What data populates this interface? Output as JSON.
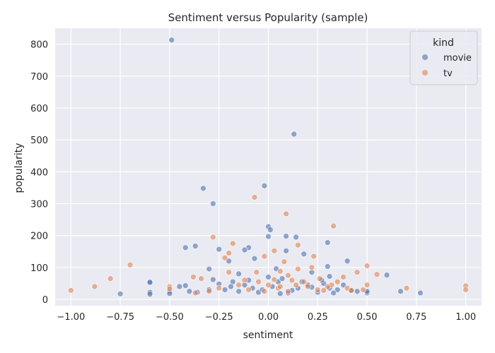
{
  "chart_data": {
    "type": "scatter",
    "title": "Sentiment versus Popularity (sample)",
    "xlabel": "sentiment",
    "ylabel": "popularity",
    "xlim": [
      -1.08,
      1.08
    ],
    "ylim": [
      -20,
      850
    ],
    "xticks": [
      -1.0,
      -0.75,
      -0.5,
      -0.25,
      0.0,
      0.25,
      0.5,
      0.75,
      1.0
    ],
    "xtick_labels": [
      "−1.00",
      "−0.75",
      "−0.50",
      "−0.25",
      "0.00",
      "0.25",
      "0.50",
      "0.75",
      "1.00"
    ],
    "yticks": [
      0,
      100,
      200,
      300,
      400,
      500,
      600,
      700,
      800
    ],
    "ytick_labels": [
      "0",
      "100",
      "200",
      "300",
      "400",
      "500",
      "600",
      "700",
      "800"
    ],
    "grid": true,
    "background": "#eaeaf2",
    "legend": {
      "title": "kind",
      "placement": "top-right"
    },
    "series": [
      {
        "name": "movie",
        "color": "#4c72b0",
        "points": [
          [
            -0.49,
            813
          ],
          [
            0.13,
            518
          ],
          [
            -0.02,
            356
          ],
          [
            -0.33,
            348
          ],
          [
            -0.28,
            300
          ],
          [
            0.0,
            228
          ],
          [
            0.01,
            218
          ],
          [
            0.0,
            197
          ],
          [
            0.09,
            198
          ],
          [
            0.14,
            195
          ],
          [
            0.3,
            178
          ],
          [
            -0.37,
            167
          ],
          [
            -0.42,
            162
          ],
          [
            -0.1,
            162
          ],
          [
            -0.25,
            157
          ],
          [
            -0.12,
            155
          ],
          [
            0.09,
            152
          ],
          [
            0.18,
            142
          ],
          [
            -0.07,
            128
          ],
          [
            -0.2,
            120
          ],
          [
            0.4,
            120
          ],
          [
            -0.3,
            95
          ],
          [
            0.3,
            103
          ],
          [
            0.04,
            96
          ],
          [
            0.22,
            85
          ],
          [
            0.6,
            76
          ],
          [
            -0.15,
            80
          ],
          [
            0.31,
            72
          ],
          [
            -0.6,
            55
          ],
          [
            -0.6,
            53
          ],
          [
            -0.6,
            22
          ],
          [
            -0.6,
            16
          ],
          [
            -0.75,
            17
          ],
          [
            -0.5,
            25
          ],
          [
            -0.5,
            18
          ],
          [
            -0.45,
            40
          ],
          [
            -0.42,
            43
          ],
          [
            -0.4,
            25
          ],
          [
            -0.36,
            22
          ],
          [
            0.67,
            25
          ],
          [
            0.77,
            20
          ],
          [
            0.5,
            20
          ],
          [
            0.5,
            25
          ],
          [
            -0.28,
            62
          ],
          [
            -0.18,
            55
          ],
          [
            -0.1,
            60
          ],
          [
            0.05,
            55
          ],
          [
            0.2,
            45
          ],
          [
            0.28,
            50
          ],
          [
            0.35,
            30
          ],
          [
            0.42,
            28
          ],
          [
            -0.22,
            30
          ],
          [
            -0.05,
            22
          ],
          [
            0.1,
            20
          ],
          [
            0.15,
            35
          ],
          [
            0.25,
            22
          ],
          [
            -0.15,
            25
          ],
          [
            -0.08,
            35
          ],
          [
            0.02,
            40
          ],
          [
            0.12,
            28
          ],
          [
            0.22,
            38
          ],
          [
            0.33,
            20
          ],
          [
            0.38,
            45
          ],
          [
            -0.3,
            30
          ],
          [
            0.45,
            25
          ],
          [
            -0.12,
            45
          ],
          [
            0.07,
            65
          ],
          [
            0.17,
            55
          ],
          [
            -0.03,
            30
          ],
          [
            0.27,
            60
          ],
          [
            -0.25,
            48
          ],
          [
            0.0,
            70
          ],
          [
            0.06,
            18
          ],
          [
            -0.19,
            40
          ],
          [
            0.31,
            35
          ]
        ]
      },
      {
        "name": "tv",
        "color": "#dd8452",
        "points": [
          [
            -1.0,
            28
          ],
          [
            -0.88,
            40
          ],
          [
            -0.8,
            65
          ],
          [
            -0.7,
            108
          ],
          [
            1.0,
            42
          ],
          [
            1.0,
            30
          ],
          [
            0.7,
            35
          ],
          [
            -0.07,
            320
          ],
          [
            0.09,
            268
          ],
          [
            0.33,
            230
          ],
          [
            -0.28,
            195
          ],
          [
            -0.18,
            175
          ],
          [
            0.15,
            170
          ],
          [
            -0.2,
            145
          ],
          [
            0.03,
            152
          ],
          [
            -0.22,
            130
          ],
          [
            -0.02,
            135
          ],
          [
            0.23,
            135
          ],
          [
            0.08,
            118
          ],
          [
            0.5,
            105
          ],
          [
            0.22,
            100
          ],
          [
            0.15,
            95
          ],
          [
            0.55,
            78
          ],
          [
            -0.38,
            70
          ],
          [
            -0.34,
            65
          ],
          [
            0.45,
            85
          ],
          [
            0.06,
            88
          ],
          [
            -0.2,
            85
          ],
          [
            0.38,
            70
          ],
          [
            -0.06,
            85
          ],
          [
            0.5,
            45
          ],
          [
            -0.5,
            40
          ],
          [
            -0.5,
            33
          ],
          [
            -0.37,
            20
          ],
          [
            -0.3,
            25
          ],
          [
            0.05,
            35
          ],
          [
            0.2,
            40
          ],
          [
            0.1,
            25
          ],
          [
            0.32,
            45
          ],
          [
            -0.15,
            45
          ],
          [
            0.28,
            28
          ],
          [
            -0.1,
            30
          ],
          [
            0.4,
            35
          ],
          [
            0.0,
            45
          ],
          [
            0.18,
            55
          ],
          [
            -0.25,
            35
          ],
          [
            0.12,
            60
          ],
          [
            0.25,
            30
          ],
          [
            -0.05,
            55
          ],
          [
            0.35,
            55
          ],
          [
            0.42,
            28
          ],
          [
            0.06,
            40
          ],
          [
            -0.02,
            25
          ],
          [
            0.14,
            45
          ],
          [
            0.26,
            65
          ],
          [
            -0.12,
            60
          ],
          [
            0.48,
            30
          ],
          [
            0.3,
            40
          ],
          [
            0.1,
            75
          ],
          [
            0.03,
            62
          ]
        ]
      }
    ]
  }
}
